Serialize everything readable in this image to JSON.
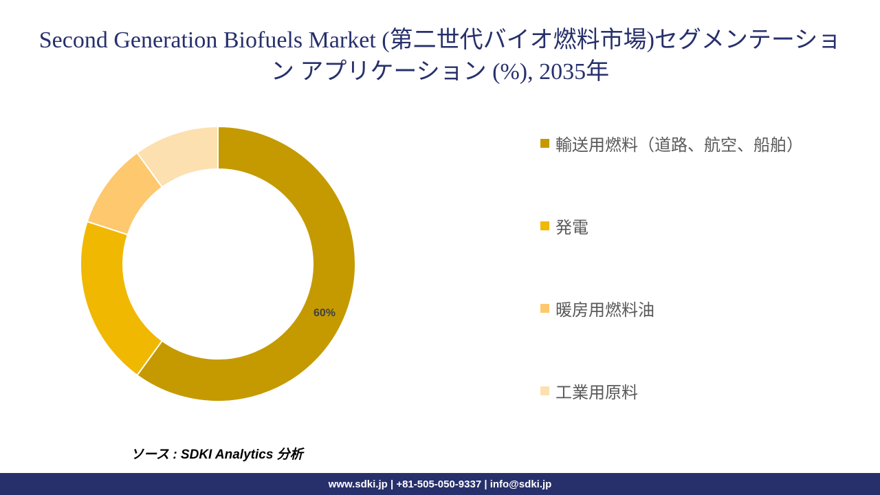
{
  "title": "Second Generation Biofuels Market (第二世代バイオ燃料市場)セグメンテーション アプリケーション (%), 2035年",
  "chart_data": {
    "type": "pie",
    "variant": "donut",
    "categories": [
      "輸送用燃料（道路、航空、船舶）",
      "発電",
      "暖房用燃料油",
      "工業用原料"
    ],
    "values": [
      60,
      20,
      10,
      10
    ],
    "colors": [
      "#c49a00",
      "#f0b800",
      "#fdc86e",
      "#fde0b0"
    ],
    "data_labels": [
      "60%",
      "",
      "",
      ""
    ],
    "legend_position": "right"
  },
  "source": "ソース : SDKI Analytics 分析",
  "footer": {
    "contact": "www.sdki.jp | +81-505-050-9337 | info@sdki.jp"
  }
}
